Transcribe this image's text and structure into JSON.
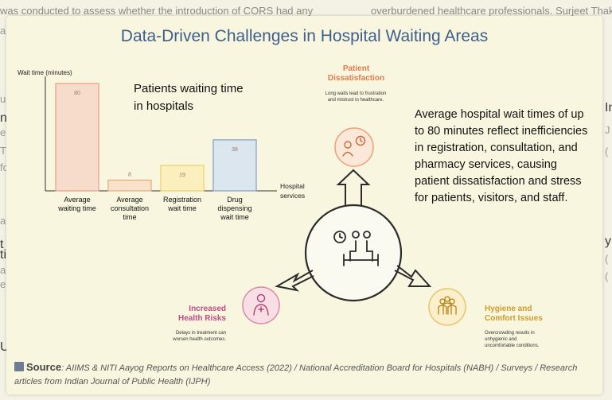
{
  "background": {
    "top_left_text": "was conducted to assess whether the introduction of CORS had any",
    "top_right_text": "overburdened healthcare professionals. Surjeet Thak",
    "left_fragments": [
      "ai",
      "un",
      "no",
      "en",
      "TI",
      "fo",
      "an",
      "t",
      "ti",
      "ary",
      "es",
      "U"
    ],
    "right_fragments": [
      "In",
      "J",
      "(",
      "y",
      "(",
      "("
    ]
  },
  "page": {
    "title": "Data-Driven Challenges in Hospital Waiting Areas"
  },
  "chart_data": {
    "type": "bar",
    "categories": [
      "Average waiting time",
      "Average consultation time",
      "Registration wait time",
      "Drug dispensing wait time"
    ],
    "values": [
      80,
      8,
      19,
      38
    ],
    "subtitle": "Patients waiting time in hospitals",
    "xlabel": "Hospital services",
    "ylabel": "Wait time (minutes)",
    "ylim": [
      0,
      80
    ],
    "grid": false,
    "bar_colors": [
      "#f7dccb",
      "#f9e2cc",
      "#fbf0bd",
      "#dbe6ef"
    ],
    "bar_stroke_colors": [
      "#ea9b86",
      "#e9a877",
      "#ecd15f",
      "#7a9fc8"
    ]
  },
  "callout": {
    "text": "Average hospital wait times of up to 80 minutes reflect inefficiencies in registration, consultation, and pharmacy services, causing patient dissatisfaction and stress for patients, visitors, and staff."
  },
  "diagram": {
    "center_icon": "waiting-room-icon",
    "nodes": [
      {
        "title": "Patient Dissatisfaction",
        "description": "Long waits lead to frustration and mistrust in healthcare.",
        "icon": "frustrated-patient-icon",
        "color": "#e07a4f"
      },
      {
        "title": "Increased Health Risks",
        "description": "Delays in treatment can worsen health outcomes.",
        "icon": "patient-health-icon",
        "color": "#c04a86"
      },
      {
        "title": "Hygiene and Comfort Issues",
        "description": "Overcrowding results in unhygienic and uncomfortable conditions.",
        "icon": "crowd-icon",
        "color": "#d19b2a"
      }
    ]
  },
  "source": {
    "label": "Source",
    "text": ": AIIMS & NITI Aayog Reports on Healthcare Access (2022) / National Accreditation Board for Hospitals (NABH) / Surveys / Research articles from Indian Journal of Public Health (IJPH)"
  }
}
